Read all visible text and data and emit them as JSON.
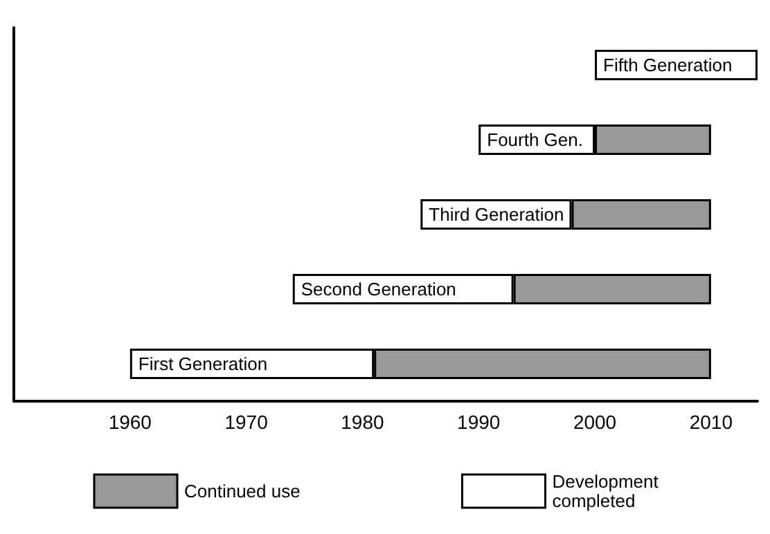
{
  "chart_data": {
    "type": "bar",
    "orientation": "horizontal",
    "categories": [
      "Fifth Generation",
      "Fourth Gen.",
      "Third Generation",
      "Second Generation",
      "First Generation"
    ],
    "series": [
      {
        "name": "Development completed",
        "color": "#ffffff",
        "base": [
          2000,
          1990,
          1985,
          1974,
          1960
        ],
        "values": [
          14,
          10,
          13,
          19,
          21
        ]
      },
      {
        "name": "Continued use",
        "color": "#999999",
        "base": [
          null,
          2000,
          1998,
          1993,
          1981
        ],
        "values": [
          null,
          10,
          12,
          17,
          29
        ]
      }
    ],
    "xlim": [
      1950,
      2014
    ],
    "xticks": [
      1960,
      1970,
      1980,
      1990,
      2000,
      2010
    ],
    "tick_labels": "x",
    "grid": false,
    "legend": "bottom"
  }
}
